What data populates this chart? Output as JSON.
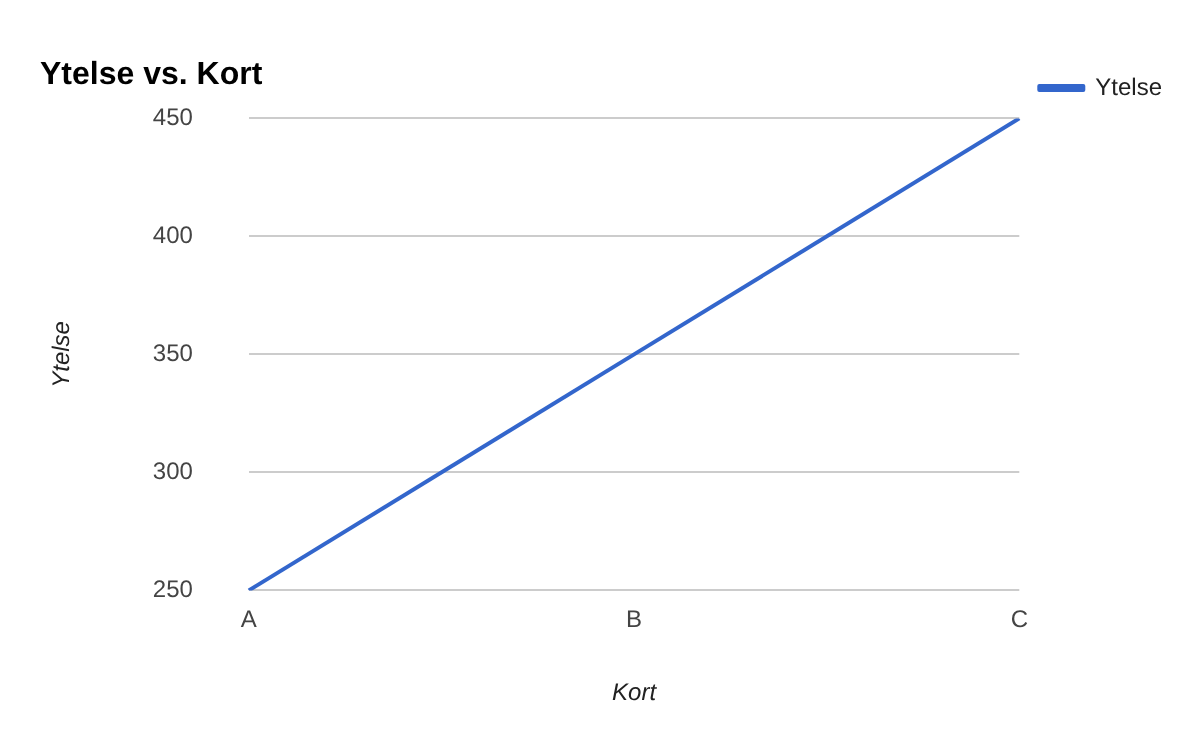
{
  "chart_data": {
    "type": "line",
    "title": "Ytelse vs. Kort",
    "xlabel": "Kort",
    "ylabel": "Ytelse",
    "categories": [
      "A",
      "B",
      "C"
    ],
    "series": [
      {
        "name": "Ytelse",
        "color": "#3366cc",
        "values": [
          250,
          350,
          450
        ]
      }
    ],
    "ylim": [
      250,
      450
    ],
    "yticks": [
      250,
      300,
      350,
      400,
      450
    ],
    "grid": "y",
    "legend": "right",
    "marker": "none"
  }
}
